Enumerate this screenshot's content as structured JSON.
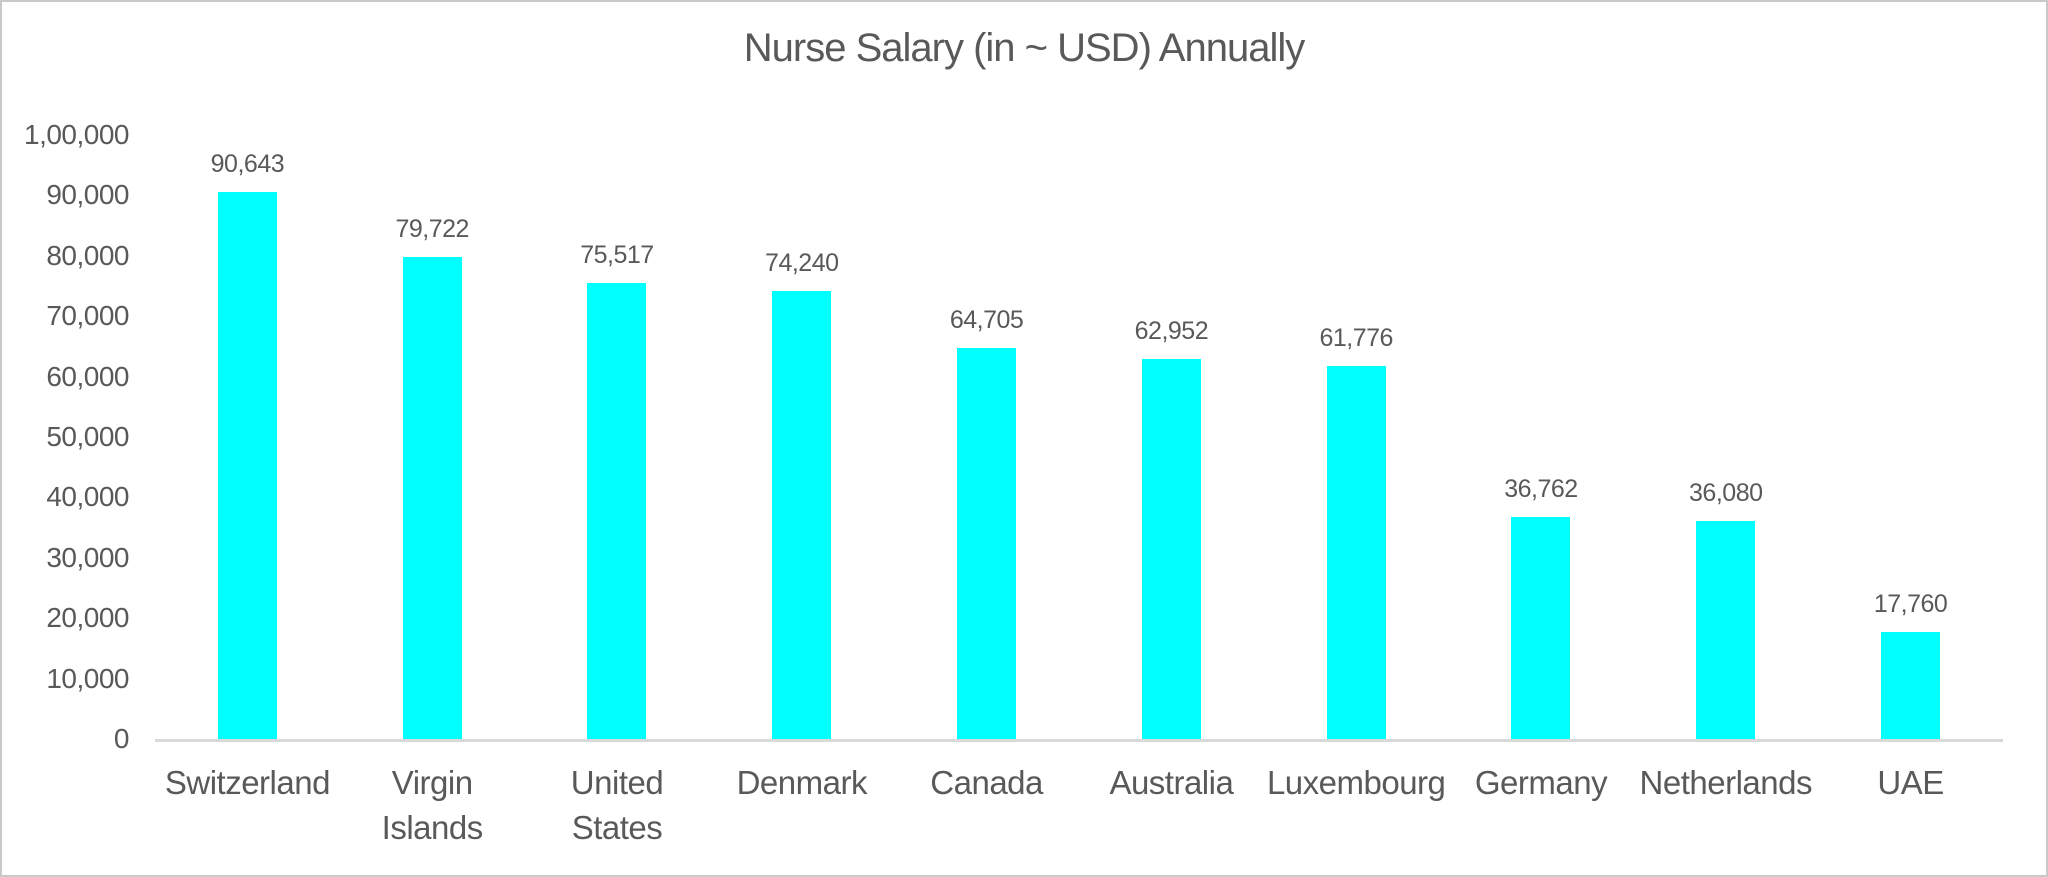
{
  "chart_data": {
    "type": "bar",
    "title": "Nurse Salary (in ~ USD) Annually",
    "categories": [
      "Switzerland",
      "Virgin Islands",
      "United States",
      "Denmark",
      "Canada",
      "Australia",
      "Luxembourg",
      "Germany",
      "Netherlands",
      "UAE"
    ],
    "values": [
      90643,
      79722,
      75517,
      74240,
      64705,
      62952,
      61776,
      36762,
      36080,
      17760
    ],
    "data_labels": [
      "90,643",
      "79,722",
      "75,517",
      "74,240",
      "64,705",
      "62,952",
      "61,776",
      "36,762",
      "36,080",
      "17,760"
    ],
    "xlabel": "",
    "ylabel": "",
    "ylim": [
      0,
      100000
    ],
    "y_ticks": [
      {
        "value": 0,
        "label": "0"
      },
      {
        "value": 10000,
        "label": "10,000"
      },
      {
        "value": 20000,
        "label": "20,000"
      },
      {
        "value": 30000,
        "label": "30,000"
      },
      {
        "value": 40000,
        "label": "40,000"
      },
      {
        "value": 50000,
        "label": "50,000"
      },
      {
        "value": 60000,
        "label": "60,000"
      },
      {
        "value": 70000,
        "label": "70,000"
      },
      {
        "value": 80000,
        "label": "80,000"
      },
      {
        "value": 90000,
        "label": "90,000"
      },
      {
        "value": 100000,
        "label": "1,00,000"
      }
    ],
    "grid": false,
    "legend": "none",
    "colors": {
      "bar_fill": "#00FFFF",
      "text": "#595959",
      "axis_line": "#D9D9D9",
      "frame_border": "#C9C9C9",
      "background": "#FFFFFF"
    }
  }
}
